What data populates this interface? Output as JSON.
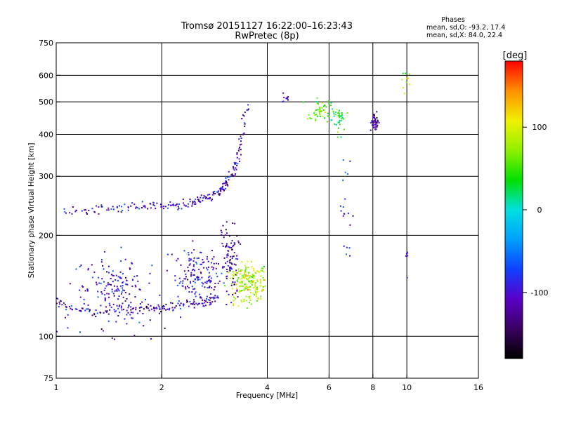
{
  "chart_data": {
    "type": "scatter",
    "title": "Tromsø 20151127 16:22:00–16:23:43",
    "subtitle": "RwPretec (8p)",
    "xlabel": "Frequency [MHz]",
    "ylabel": "Stationary phase Virtual Height [km]",
    "x_scale": "log",
    "y_scale": "log",
    "xlim": [
      1,
      16
    ],
    "ylim": [
      75,
      750
    ],
    "x_ticks": [
      1,
      2,
      4,
      6,
      8,
      10,
      16
    ],
    "x_tick_labels": [
      "1",
      "2",
      "4",
      "6",
      "8",
      "10",
      "16"
    ],
    "x_grid": [
      2,
      4,
      6,
      8,
      10
    ],
    "y_ticks": [
      75,
      100,
      200,
      300,
      400,
      500,
      600,
      750
    ],
    "y_tick_labels": [
      "75",
      "100",
      "200",
      "300",
      "400",
      "500",
      "600",
      "750"
    ],
    "y_grid": [
      100,
      200,
      300,
      400,
      500,
      600
    ],
    "grid": true,
    "phase_box": {
      "heading": "Phases",
      "line1": "mean, sd,O:  -93.2, 17.4",
      "line2": "mean, sd,X:  84.0, 22.4"
    },
    "colorbar": {
      "label": "[deg]",
      "range": [
        -180,
        180
      ],
      "tick_values": [
        100,
        0,
        -100
      ],
      "tick_labels": [
        "100",
        "0",
        "-100"
      ],
      "colors": [
        "#000000",
        "#3a0060",
        "#5a00c8",
        "#1040ff",
        "#00a0ff",
        "#00e0e0",
        "#00e000",
        "#90f000",
        "#f0f000",
        "#ff9000",
        "#ff0000"
      ]
    },
    "traces": [
      {
        "name": "",
        "kind": "o-mode",
        "x": [
          1.0,
          1.1,
          1.25,
          1.4,
          1.6,
          1.8,
          1.95,
          2.1,
          2.3,
          2.5,
          2.7,
          2.85
        ],
        "y": [
          128,
          120,
          119,
          120,
          121,
          121,
          120,
          122,
          124,
          125,
          126,
          130
        ],
        "phase": -110
      },
      {
        "name": "",
        "kind": "o-mode",
        "x": [
          1.05,
          1.25,
          1.45,
          1.65,
          1.85,
          2.05,
          2.25,
          2.45,
          2.6,
          2.75,
          2.9,
          3.0,
          3.1,
          3.2,
          3.3,
          3.4,
          3.5
        ],
        "y": [
          237,
          237,
          240,
          243,
          243,
          244,
          246,
          250,
          256,
          262,
          270,
          278,
          290,
          310,
          340,
          400,
          500
        ],
        "phase": -105
      }
    ],
    "scatter_clusters": [
      {
        "center": [
          1.5,
          135
        ],
        "spread": [
          0.4,
          28
        ],
        "count": 170,
        "phase": -100
      },
      {
        "center": [
          2.6,
          150
        ],
        "spread": [
          0.35,
          25
        ],
        "count": 160,
        "phase": -100
      },
      {
        "center": [
          3.55,
          145
        ],
        "spread": [
          0.35,
          18
        ],
        "count": 190,
        "phase": 85
      },
      {
        "center": [
          3.15,
          170
        ],
        "spread": [
          0.15,
          40
        ],
        "count": 90,
        "phase": -120
      },
      {
        "center": [
          5.7,
          470
        ],
        "spread": [
          0.35,
          35
        ],
        "count": 55,
        "phase": 60
      },
      {
        "center": [
          6.4,
          440
        ],
        "spread": [
          0.25,
          35
        ],
        "count": 40,
        "phase": 30
      },
      {
        "center": [
          8.1,
          435
        ],
        "spread": [
          0.18,
          18
        ],
        "count": 45,
        "phase": -125
      },
      {
        "center": [
          4.5,
          515
        ],
        "spread": [
          0.1,
          15
        ],
        "count": 10,
        "phase": -110
      },
      {
        "center": [
          10.0,
          580
        ],
        "spread": [
          0.35,
          40
        ],
        "count": 10,
        "phase": 90
      },
      {
        "center": [
          6.7,
          240
        ],
        "spread": [
          0.2,
          60
        ],
        "count": 20,
        "phase": -90
      },
      {
        "center": [
          10.0,
          170
        ],
        "spread": [
          0.1,
          25
        ],
        "count": 6,
        "phase": -110
      }
    ]
  }
}
